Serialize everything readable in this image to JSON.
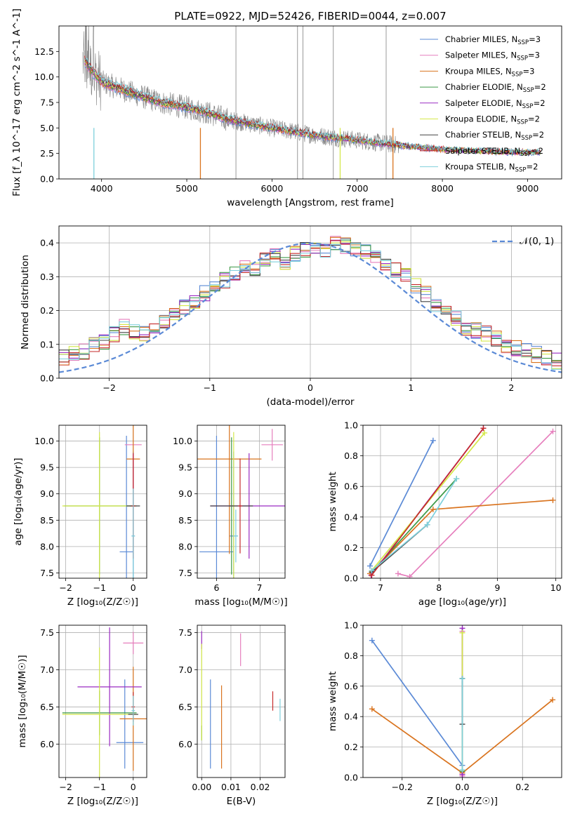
{
  "chart_data": [
    {
      "id": "spectrum",
      "type": "line",
      "title": "PLATE=0922, MJD=52426, FIBERID=0044, z=0.007",
      "xlabel": "wavelength [Angstrom, rest frame]",
      "ylabel": "Flux [f_λ 10^-17 erg cm^-2 s^-1 A^-1]",
      "xlim": [
        3500,
        9400
      ],
      "ylim": [
        0,
        15
      ],
      "xticks": [
        "4000",
        "5000",
        "6000",
        "7000",
        "8000",
        "9000"
      ],
      "yticks": [
        "0.0",
        "2.5",
        "5.0",
        "7.5",
        "10.0",
        "12.5"
      ],
      "legend": "top-right",
      "data_color": "#808080",
      "spikes": [
        5577,
        6300,
        6364,
        6720,
        7340
      ],
      "series": [
        {
          "name": "Chabrier MILES, N_SSP=3",
          "color": "#5b8ad6"
        },
        {
          "name": "Salpeter MILES, N_SSP=3",
          "color": "#e67fbd"
        },
        {
          "name": "Kroupa MILES, N_SSP=3",
          "color": "#d9741f"
        },
        {
          "name": "Chabrier ELODIE, N_SSP=2",
          "color": "#3e9a48"
        },
        {
          "name": "Salpeter ELODIE, N_SSP=2",
          "color": "#9a2bc2"
        },
        {
          "name": "Kroupa ELODIE, N_SSP=2",
          "color": "#d4e84a"
        },
        {
          "name": "Chabrier STELIB, N_SSP=2",
          "color": "#444444"
        },
        {
          "name": "Salpeter STELIB, N_SSP=2",
          "color": "#c62b2b"
        },
        {
          "name": "Kroupa STELIB, N_SSP=2",
          "color": "#7fd0dc"
        }
      ],
      "model_curve": {
        "x": [
          3800,
          3900,
          4000,
          4100,
          4300,
          4500,
          4700,
          5000,
          5200,
          5500,
          6000,
          6500,
          7000,
          7500,
          8000,
          8500,
          9000
        ],
        "y": [
          11.5,
          10.5,
          9.5,
          9.2,
          8.6,
          8.0,
          7.5,
          7.0,
          6.6,
          5.8,
          5.0,
          4.3,
          3.8,
          3.3,
          2.9,
          2.7,
          2.6
        ]
      }
    },
    {
      "id": "residuals",
      "type": "histogram",
      "xlabel": "(data-model)/error",
      "ylabel": "Normed distribution",
      "xlim": [
        -2.5,
        2.5
      ],
      "ylim": [
        0,
        0.45
      ],
      "xticks": [
        "−2",
        "−1",
        "0",
        "1",
        "2"
      ],
      "yticks": [
        "0.0",
        "0.1",
        "0.2",
        "0.3",
        "0.4"
      ],
      "legend_label": "𝒩(0, 1)",
      "normal_color": "#5b8ad6",
      "bin_edges_start": -2.5,
      "bin_width": 0.1,
      "base_values": [
        0.06,
        0.07,
        0.08,
        0.1,
        0.11,
        0.13,
        0.15,
        0.14,
        0.13,
        0.15,
        0.17,
        0.19,
        0.21,
        0.23,
        0.25,
        0.27,
        0.29,
        0.31,
        0.33,
        0.32,
        0.35,
        0.36,
        0.34,
        0.37,
        0.38,
        0.39,
        0.38,
        0.4,
        0.39,
        0.38,
        0.37,
        0.36,
        0.34,
        0.32,
        0.3,
        0.27,
        0.25,
        0.22,
        0.2,
        0.18,
        0.15,
        0.14,
        0.13,
        0.12,
        0.1,
        0.09,
        0.08,
        0.07,
        0.06,
        0.05
      ]
    },
    {
      "id": "age-vs-Z",
      "type": "errorbar",
      "xlabel": "Z [log₁₀(Z/Z☉)]",
      "ylabel": "age  [log₁₀(age/yr)]",
      "xlim": [
        -2.2,
        0.4
      ],
      "ylim": [
        7.4,
        10.3
      ],
      "xticks": [
        "−2",
        "−1",
        "0"
      ],
      "yticks": [
        "7.5",
        "8.0",
        "8.5",
        "9.0",
        "9.5",
        "10.0"
      ],
      "points": [
        {
          "c": 0,
          "x": -0.2,
          "y": 7.9,
          "xe": 0.2,
          "ye": 2.2
        },
        {
          "c": 0,
          "x": 0.0,
          "y": 8.2,
          "xe": 0.05,
          "ye": 1.6
        },
        {
          "c": 1,
          "x": 0.0,
          "y": 9.93,
          "xe": 0.25,
          "ye": 0.0
        },
        {
          "c": 2,
          "x": 0.0,
          "y": 9.66,
          "xe": 0.2,
          "ye": 1.8
        },
        {
          "c": 3,
          "x": -1.0,
          "y": 8.77,
          "xe": 1.05,
          "ye": 1.3
        },
        {
          "c": 4,
          "x": 0.0,
          "y": 8.77,
          "xe": 0.1,
          "ye": 1.0
        },
        {
          "c": 5,
          "x": -1.0,
          "y": 8.77,
          "xe": 1.1,
          "ye": 1.4
        },
        {
          "c": 6,
          "x": 0.0,
          "y": 8.77,
          "xe": 0.2,
          "ye": 0.0
        },
        {
          "c": 7,
          "x": 0.0,
          "y": 8.77,
          "xe": 0.05,
          "ye": 1.0
        },
        {
          "c": 8,
          "x": 0.0,
          "y": 8.2,
          "xe": 0.05,
          "ye": 0.9
        }
      ]
    },
    {
      "id": "age-vs-mass",
      "type": "errorbar",
      "xlabel": "mass [log₁₀(M/M☉)]",
      "ylabel": "",
      "xlim": [
        5.55,
        7.6
      ],
      "ylim": [
        7.4,
        10.3
      ],
      "xticks": [
        "6",
        "7"
      ],
      "yticks": [
        "7.5",
        "8.0",
        "8.5",
        "9.0",
        "9.5",
        "10.0"
      ],
      "points": [
        {
          "c": 0,
          "x": 6.0,
          "y": 7.9,
          "xe": 0.4,
          "ye": 2.2
        },
        {
          "c": 0,
          "x": 6.4,
          "y": 8.2,
          "xe": 0.1,
          "ye": 1.6
        },
        {
          "c": 1,
          "x": 7.3,
          "y": 9.93,
          "xe": 0.25,
          "ye": 0.3
        },
        {
          "c": 2,
          "x": 6.3,
          "y": 9.66,
          "xe": 0.75,
          "ye": 1.8
        },
        {
          "c": 3,
          "x": 6.35,
          "y": 8.77,
          "xe": 0.05,
          "ye": 1.3
        },
        {
          "c": 4,
          "x": 6.76,
          "y": 8.77,
          "xe": 0.9,
          "ye": 1.0
        },
        {
          "c": 5,
          "x": 6.4,
          "y": 8.77,
          "xe": 0.1,
          "ye": 1.4
        },
        {
          "c": 6,
          "x": 6.35,
          "y": 8.77,
          "xe": 0.5,
          "ye": 0.0
        },
        {
          "c": 7,
          "x": 6.55,
          "y": 8.77,
          "xe": 0.05,
          "ye": 0.9
        },
        {
          "c": 8,
          "x": 6.45,
          "y": 8.2,
          "xe": 0.05,
          "ye": 0.5
        }
      ]
    },
    {
      "id": "weight-vs-age",
      "type": "line",
      "xlabel": "age  [log₁₀(age/yr)]",
      "ylabel": "mass weight",
      "xlim": [
        6.7,
        10.1
      ],
      "ylim": [
        0,
        1
      ],
      "xticks": [
        "7",
        "8",
        "9",
        "10"
      ],
      "yticks": [
        "0.0",
        "0.2",
        "0.4",
        "0.6",
        "0.8",
        "1.0"
      ],
      "series": [
        {
          "c": 0,
          "x": [
            6.82,
            7.9
          ],
          "y": [
            0.08,
            0.9
          ]
        },
        {
          "c": 1,
          "x": [
            7.3,
            7.5,
            9.95
          ],
          "y": [
            0.03,
            0.01,
            0.96
          ]
        },
        {
          "c": 2,
          "x": [
            6.82,
            7.9,
            9.95
          ],
          "y": [
            0.03,
            0.45,
            0.51
          ]
        },
        {
          "c": 3,
          "x": [
            6.85,
            8.3
          ],
          "y": [
            0.04,
            0.65
          ]
        },
        {
          "c": 4,
          "x": [
            6.84,
            8.76
          ],
          "y": [
            0.02,
            0.98
          ]
        },
        {
          "c": 5,
          "x": [
            6.85,
            8.78
          ],
          "y": [
            0.05,
            0.95
          ]
        },
        {
          "c": 6,
          "x": [
            6.85,
            7.8
          ],
          "y": [
            0.04,
            0.35
          ]
        },
        {
          "c": 7,
          "x": [
            6.85,
            8.76
          ],
          "y": [
            0.02,
            0.98
          ]
        },
        {
          "c": 8,
          "x": [
            6.85,
            7.8,
            8.3
          ],
          "y": [
            0.05,
            0.35,
            0.65
          ]
        }
      ]
    },
    {
      "id": "mass-vs-Z",
      "type": "errorbar",
      "xlabel": "Z [log₁₀(Z/Z☉)]",
      "ylabel": "mass [log₁₀(M/M☉)]",
      "xlim": [
        -2.2,
        0.4
      ],
      "ylim": [
        5.55,
        7.6
      ],
      "xticks": [
        "−2",
        "−1",
        "0"
      ],
      "yticks": [
        "6.0",
        "6.5",
        "7.0",
        "7.5"
      ],
      "points": [
        {
          "c": 0,
          "x": -0.1,
          "y": 6.02,
          "xe": 0.4,
          "ye": 0.0
        },
        {
          "c": 0,
          "x": -0.25,
          "y": 6.27,
          "xe": 0.0,
          "ye": 0.6
        },
        {
          "c": 1,
          "x": 0.0,
          "y": 7.36,
          "xe": 0.3,
          "ye": 0.15
        },
        {
          "c": 2,
          "x": 0.0,
          "y": 6.34,
          "xe": 0.4,
          "ye": 0.7
        },
        {
          "c": 3,
          "x": -1.0,
          "y": 6.42,
          "xe": 1.1,
          "ye": 0.3
        },
        {
          "c": 4,
          "x": -0.7,
          "y": 6.77,
          "xe": 0.95,
          "ye": 0.8
        },
        {
          "c": 5,
          "x": -1.0,
          "y": 6.4,
          "xe": 1.1,
          "ye": 0.9
        },
        {
          "c": 6,
          "x": 0.0,
          "y": 6.4,
          "xe": 0.15,
          "ye": 0.0
        },
        {
          "c": 7,
          "x": 0.0,
          "y": 6.5,
          "xe": 0.05,
          "ye": 0.2
        },
        {
          "c": 8,
          "x": 0.0,
          "y": 6.45,
          "xe": 0.05,
          "ye": 0.2
        }
      ]
    },
    {
      "id": "mass-vs-ebv",
      "type": "errorbar",
      "xlabel": "E(B-V)",
      "ylabel": "",
      "xlim": [
        -0.0015,
        0.0285
      ],
      "ylim": [
        5.55,
        7.6
      ],
      "xticks": [
        "0.00",
        "0.01",
        "0.02"
      ],
      "yticks": [
        "6.0",
        "6.5",
        "7.0",
        "7.5"
      ],
      "points": [
        {
          "c": 0,
          "x": 0.003,
          "y": 6.27,
          "xe": 0.0,
          "ye": 0.6
        },
        {
          "c": 1,
          "x": 0.0133,
          "y": 7.27,
          "xe": 0.0,
          "ye": 0.22
        },
        {
          "c": 2,
          "x": 0.0068,
          "y": 6.23,
          "xe": 0.0,
          "ye": 0.56
        },
        {
          "c": 3,
          "x": 0.0,
          "y": 6.15,
          "xe": 0.0,
          "ye": 0.1
        },
        {
          "c": 4,
          "x": 0.0,
          "y": 7.4,
          "xe": 0.0,
          "ye": 0.12
        },
        {
          "c": 5,
          "x": 0.0,
          "y": 6.7,
          "xe": 0.0,
          "ye": 0.65
        },
        {
          "c": 7,
          "x": 0.0243,
          "y": 6.58,
          "xe": 0.0,
          "ye": 0.13
        },
        {
          "c": 8,
          "x": 0.0268,
          "y": 6.46,
          "xe": 0.0,
          "ye": 0.15
        }
      ]
    },
    {
      "id": "weight-vs-Z",
      "type": "line",
      "xlabel": "Z [log₁₀(Z/Z☉)]",
      "ylabel": "mass weight",
      "xlim": [
        -0.33,
        0.33
      ],
      "ylim": [
        0,
        1
      ],
      "xticks": [
        "−0.2",
        "0.0",
        "0.2"
      ],
      "yticks": [
        "0.0",
        "0.2",
        "0.4",
        "0.6",
        "0.8",
        "1.0"
      ],
      "series": [
        {
          "c": 0,
          "x": [
            -0.3,
            0.0
          ],
          "y": [
            0.9,
            0.08
          ]
        },
        {
          "c": 1,
          "x": [
            0.0,
            0.0
          ],
          "y": [
            0.01,
            0.96
          ]
        },
        {
          "c": 2,
          "x": [
            -0.3,
            0.0,
            0.3
          ],
          "y": [
            0.45,
            0.03,
            0.51
          ]
        },
        {
          "c": 3,
          "x": [
            0.0,
            0.0
          ],
          "y": [
            0.04,
            0.65
          ]
        },
        {
          "c": 4,
          "x": [
            0.0,
            0.0
          ],
          "y": [
            0.02,
            0.98
          ]
        },
        {
          "c": 5,
          "x": [
            0.0,
            0.0
          ],
          "y": [
            0.05,
            0.95
          ]
        },
        {
          "c": 6,
          "x": [
            0.0,
            0.0
          ],
          "y": [
            0.35,
            0.65
          ]
        },
        {
          "c": 8,
          "x": [
            0.0,
            0.0
          ],
          "y": [
            0.05,
            0.65
          ]
        }
      ]
    }
  ]
}
